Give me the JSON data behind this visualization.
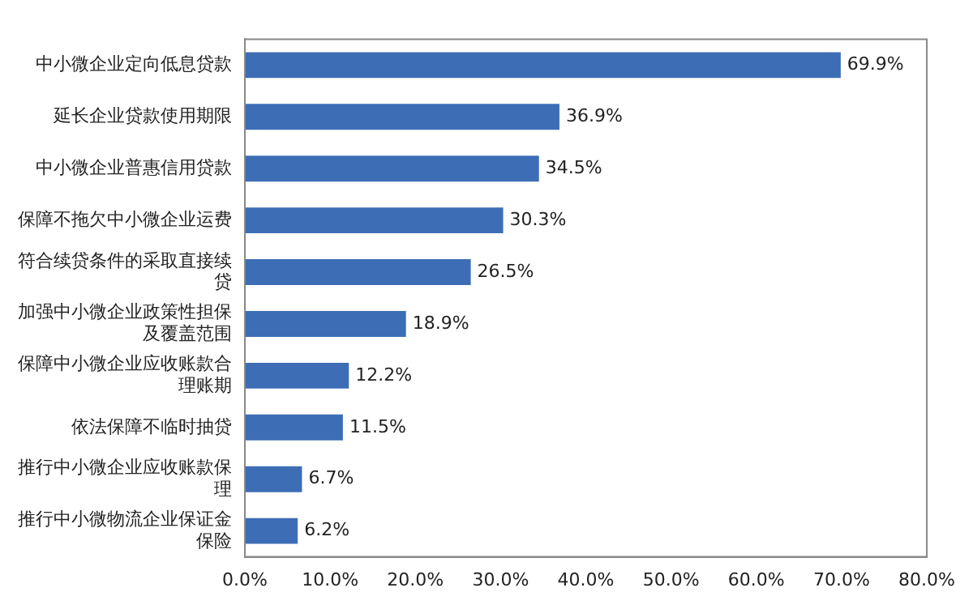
{
  "chart_data": {
    "type": "bar",
    "orientation": "horizontal",
    "categories": [
      "中小微企业定向低息贷款",
      "延长企业贷款使用期限",
      "中小微企业普惠信用贷款",
      "保障不拖欠中小微企业运费",
      "符合续贷条件的采取直接续贷",
      "加强中小微企业政策性担保及覆盖范围",
      "保障中小微企业应收账款合理账期",
      "依法保障不临时抽贷",
      "推行中小微企业应收账款保理",
      "推行中小微物流企业保证金保险"
    ],
    "values": [
      69.9,
      36.9,
      34.5,
      30.3,
      26.5,
      18.9,
      12.2,
      11.5,
      6.7,
      6.2
    ],
    "value_labels": [
      "69.9%",
      "36.9%",
      "34.5%",
      "30.3%",
      "26.5%",
      "18.9%",
      "12.2%",
      "11.5%",
      "6.7%",
      "6.2%"
    ],
    "color": "#3d6db5",
    "xlim": [
      0,
      80
    ],
    "xticks": [
      {
        "value": 0,
        "label": "0.0%"
      },
      {
        "value": 10,
        "label": "10.0%"
      },
      {
        "value": 20,
        "label": "20.0%"
      },
      {
        "value": 30,
        "label": "30.0%"
      },
      {
        "value": 40,
        "label": "40.0%"
      },
      {
        "value": 50,
        "label": "50.0%"
      },
      {
        "value": 60,
        "label": "60.0%"
      },
      {
        "value": 70,
        "label": "70.0%"
      },
      {
        "value": 80,
        "label": "80.0%"
      }
    ],
    "grid": false,
    "legend": false
  }
}
